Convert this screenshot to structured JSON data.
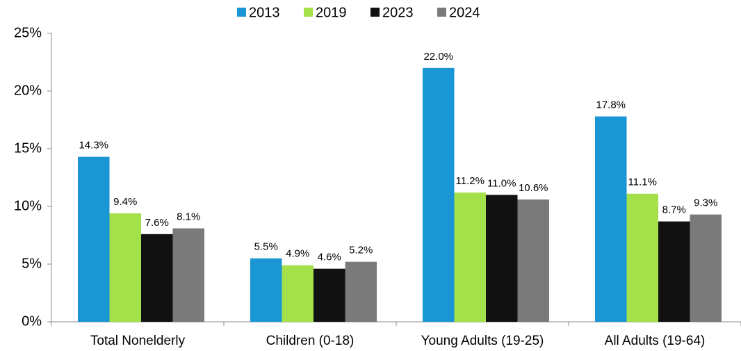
{
  "chart_data": {
    "type": "bar",
    "categories": [
      "Total Nonelderly",
      "Children (0-18)",
      "Young Adults (19-25)",
      "All Adults (19-64)"
    ],
    "series": [
      {
        "name": "2013",
        "color": "#1a96d4",
        "values": [
          14.3,
          5.5,
          22.0,
          17.8
        ],
        "value_labels": [
          "14.3%",
          "5.5%",
          "22.0%",
          "17.8%"
        ]
      },
      {
        "name": "2019",
        "color": "#a3e04a",
        "values": [
          9.4,
          4.9,
          11.2,
          11.1
        ],
        "value_labels": [
          "9.4%",
          "4.9%",
          "11.2%",
          "11.1%"
        ]
      },
      {
        "name": "2023",
        "color": "#111111",
        "values": [
          7.6,
          4.6,
          11.0,
          8.7
        ],
        "value_labels": [
          "7.6%",
          "4.6%",
          "11.0%",
          "8.7%"
        ]
      },
      {
        "name": "2024",
        "color": "#7a7a7a",
        "values": [
          8.1,
          5.2,
          10.6,
          9.3
        ],
        "value_labels": [
          "8.1%",
          "5.2%",
          "10.6%",
          "9.3%"
        ]
      }
    ],
    "ylim": [
      0,
      25
    ],
    "yticks": [
      {
        "value": 0,
        "label": "0%"
      },
      {
        "value": 5,
        "label": "5%"
      },
      {
        "value": 10,
        "label": "10%"
      },
      {
        "value": 15,
        "label": "15%"
      },
      {
        "value": 20,
        "label": "20%"
      },
      {
        "value": 25,
        "label": "25%"
      }
    ],
    "legend": "top"
  }
}
